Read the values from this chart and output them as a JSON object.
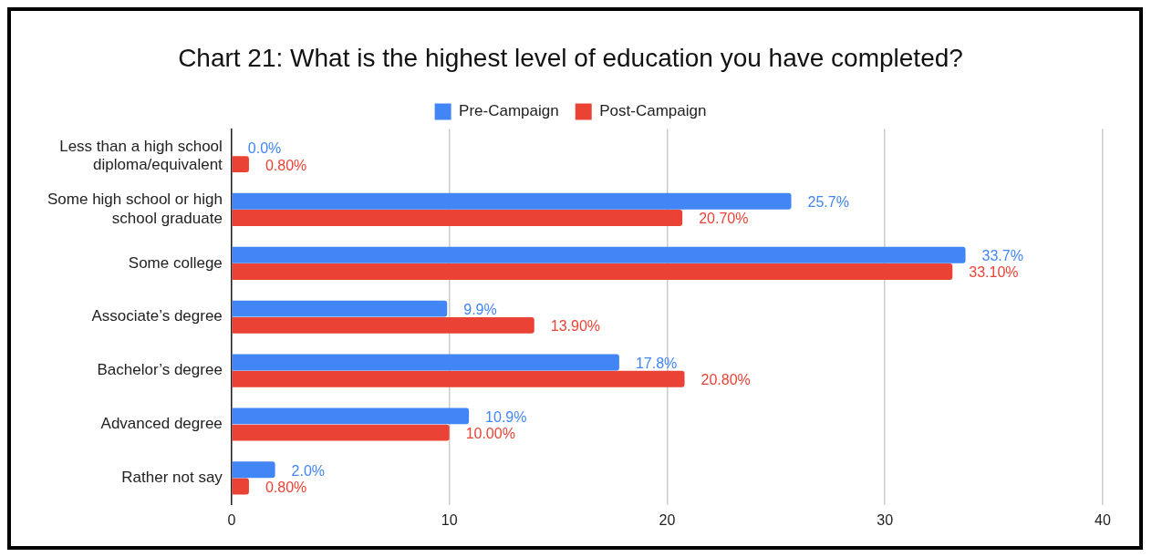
{
  "chart_data": {
    "type": "bar",
    "orientation": "horizontal",
    "title": "Chart 21: What is the highest level of education you have completed?",
    "categories": [
      "Less than a high school diploma/equivalent",
      "Some high school or high school graduate",
      "Some college",
      "Associate’s degree",
      "Bachelor’s degree",
      "Advanced degree",
      "Rather not say"
    ],
    "series": [
      {
        "name": "Pre-Campaign",
        "color": "#4285f4",
        "values": [
          0,
          25.7,
          33.7,
          9.9,
          17.8,
          10.9,
          2.0
        ],
        "value_labels": [
          "0.0%",
          "25.7%",
          "33.7%",
          "9.9%",
          "17.8%",
          "10.9%",
          "2.0%"
        ]
      },
      {
        "name": "Post-Campaign",
        "color": "#ea4335",
        "values": [
          0.8,
          20.7,
          33.1,
          13.9,
          20.8,
          10.0,
          0.8
        ],
        "value_labels": [
          "0.80%",
          "20.70%",
          "33.10%",
          "13.90%",
          "20.80%",
          "10.00%",
          "0.80%"
        ]
      }
    ],
    "xlim": [
      0,
      40
    ],
    "xticks": [
      0,
      10,
      20,
      30,
      40
    ],
    "grid": "x",
    "legend": "top"
  }
}
